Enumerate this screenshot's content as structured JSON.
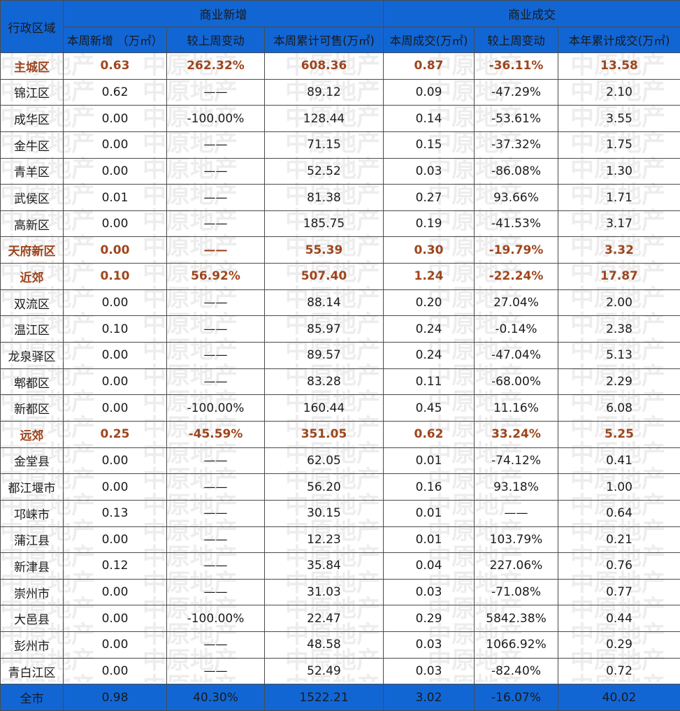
{
  "header": {
    "region_label": "行政区域",
    "group_new": "商业新增",
    "group_deal": "商业成交",
    "columns": [
      "本周新增 （万㎡）",
      "较上周变动",
      "本周累计可售(万㎡)",
      "本周成交(万㎡)",
      "较上周变动",
      "本年累计成交(万㎡)"
    ]
  },
  "rows": [
    {
      "name": "主城区",
      "type": "district",
      "cells": [
        "0.63",
        "262.32%",
        "608.36",
        "0.87",
        "-36.11%",
        "13.58"
      ]
    },
    {
      "name": "锦江区",
      "type": "normal",
      "cells": [
        "0.62",
        "——",
        "89.12",
        "0.09",
        "-47.29%",
        "2.10"
      ]
    },
    {
      "name": "成华区",
      "type": "normal",
      "cells": [
        "0.00",
        "-100.00%",
        "128.44",
        "0.14",
        "-53.61%",
        "3.55"
      ]
    },
    {
      "name": "金牛区",
      "type": "normal",
      "cells": [
        "0.00",
        "——",
        "71.15",
        "0.15",
        "-37.32%",
        "1.75"
      ]
    },
    {
      "name": "青羊区",
      "type": "normal",
      "cells": [
        "0.00",
        "——",
        "52.52",
        "0.03",
        "-86.08%",
        "1.30"
      ]
    },
    {
      "name": "武侯区",
      "type": "normal",
      "cells": [
        "0.01",
        "——",
        "81.38",
        "0.27",
        "93.66%",
        "1.71"
      ]
    },
    {
      "name": "高新区",
      "type": "normal",
      "cells": [
        "0.00",
        "——",
        "185.75",
        "0.19",
        "-41.53%",
        "3.17"
      ]
    },
    {
      "name": "天府新区",
      "type": "district",
      "cells": [
        "0.00",
        "——",
        "55.39",
        "0.30",
        "-19.79%",
        "3.32"
      ]
    },
    {
      "name": "近郊",
      "type": "district",
      "cells": [
        "0.10",
        "56.92%",
        "507.40",
        "1.24",
        "-22.24%",
        "17.87"
      ]
    },
    {
      "name": "双流区",
      "type": "normal",
      "cells": [
        "0.00",
        "——",
        "88.14",
        "0.20",
        "27.04%",
        "2.00"
      ]
    },
    {
      "name": "温江区",
      "type": "normal",
      "cells": [
        "0.10",
        "——",
        "85.97",
        "0.24",
        "-0.14%",
        "2.38"
      ]
    },
    {
      "name": "龙泉驿区",
      "type": "normal",
      "cells": [
        "0.00",
        "——",
        "89.57",
        "0.24",
        "-47.04%",
        "5.13"
      ]
    },
    {
      "name": "郫都区",
      "type": "normal",
      "cells": [
        "0.00",
        "——",
        "83.28",
        "0.11",
        "-68.00%",
        "2.29"
      ]
    },
    {
      "name": "新都区",
      "type": "normal",
      "cells": [
        "0.00",
        "-100.00%",
        "160.44",
        "0.45",
        "11.16%",
        "6.08"
      ]
    },
    {
      "name": "远郊",
      "type": "district",
      "cells": [
        "0.25",
        "-45.59%",
        "351.05",
        "0.62",
        "33.24%",
        "5.25"
      ]
    },
    {
      "name": "金堂县",
      "type": "normal",
      "cells": [
        "0.00",
        "——",
        "62.05",
        "0.01",
        "-74.12%",
        "0.41"
      ]
    },
    {
      "name": "都江堰市",
      "type": "normal",
      "cells": [
        "0.00",
        "——",
        "56.20",
        "0.16",
        "93.18%",
        "1.00"
      ]
    },
    {
      "name": "邛崃市",
      "type": "normal",
      "cells": [
        "0.13",
        "——",
        "30.15",
        "0.01",
        "——",
        "0.64"
      ]
    },
    {
      "name": "蒲江县",
      "type": "normal",
      "cells": [
        "0.00",
        "——",
        "12.23",
        "0.01",
        "103.79%",
        "0.21"
      ]
    },
    {
      "name": "新津县",
      "type": "normal",
      "cells": [
        "0.12",
        "——",
        "35.84",
        "0.04",
        "227.06%",
        "0.76"
      ]
    },
    {
      "name": "崇州市",
      "type": "normal",
      "cells": [
        "0.00",
        "——",
        "31.03",
        "0.03",
        "-71.08%",
        "0.77"
      ]
    },
    {
      "name": "大邑县",
      "type": "normal",
      "cells": [
        "0.00",
        "-100.00%",
        "22.47",
        "0.29",
        "5842.38%",
        "0.44"
      ]
    },
    {
      "name": "彭州市",
      "type": "normal",
      "cells": [
        "0.00",
        "——",
        "48.58",
        "0.03",
        "1066.92%",
        "0.29"
      ]
    },
    {
      "name": "青白江区",
      "type": "normal",
      "cells": [
        "0.00",
        "——",
        "52.49",
        "0.03",
        "-82.40%",
        "0.72"
      ]
    }
  ],
  "total": {
    "name": "全市",
    "cells": [
      "0.98",
      "40.30%",
      "1522.21",
      "3.02",
      "-16.07%",
      "40.02"
    ]
  },
  "watermark_text": "中原地产"
}
